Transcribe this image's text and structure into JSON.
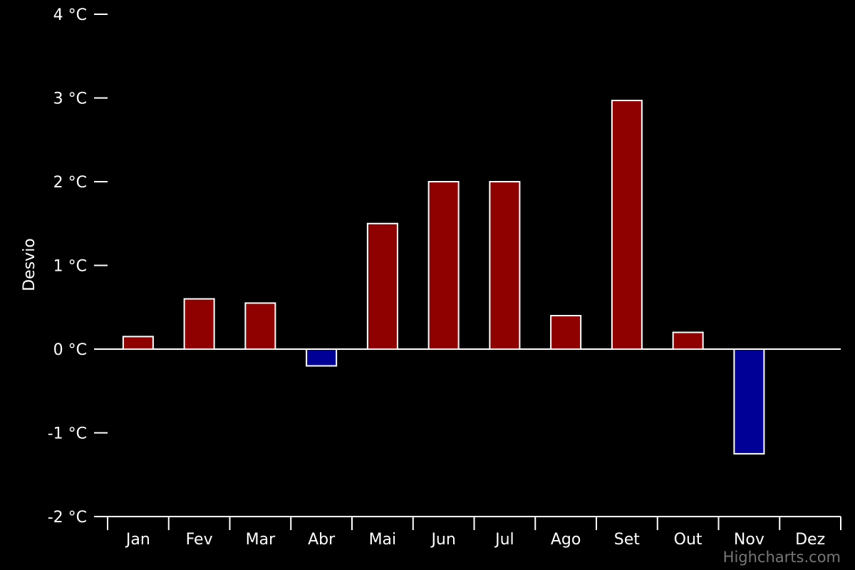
{
  "chart_data": {
    "type": "bar",
    "categories": [
      "Jan",
      "Fev",
      "Mar",
      "Abr",
      "Mai",
      "Jun",
      "Jul",
      "Ago",
      "Set",
      "Out",
      "Nov",
      "Dez"
    ],
    "values": [
      0.15,
      0.6,
      0.55,
      -0.2,
      1.5,
      2.0,
      2.0,
      0.4,
      2.97,
      0.2,
      -1.25,
      null
    ],
    "ylabel": "Desvio",
    "xlabel": "",
    "ylim": [
      -2,
      4
    ],
    "y_ticks": [
      {
        "value": 4,
        "label": "4 °C"
      },
      {
        "value": 3,
        "label": "3 °C"
      },
      {
        "value": 2,
        "label": "2 °C"
      },
      {
        "value": 1,
        "label": "1 °C"
      },
      {
        "value": 0,
        "label": "0 °C"
      },
      {
        "value": -1,
        "label": "-1 °C"
      },
      {
        "value": -2,
        "label": "-2 °C"
      }
    ],
    "grid": false,
    "legend": "none",
    "colors": {
      "positive": "#8f0000",
      "negative": "#000096",
      "bar_border": "#ffffff",
      "axis": "#ffffff",
      "background": "#000000"
    }
  },
  "credits": "Highcharts.com"
}
